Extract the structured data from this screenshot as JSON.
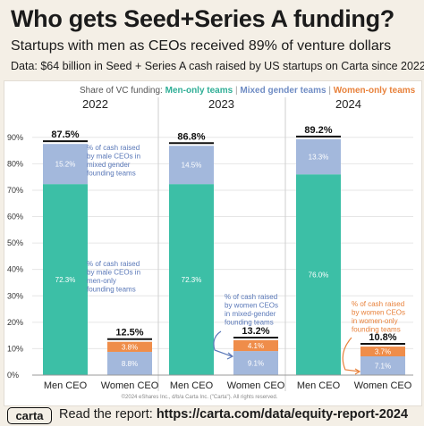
{
  "header": {
    "title": "Who gets Seed+Series A funding?",
    "subtitle": "Startups with men as CEOs received 89% of venture dollars",
    "data_note": "Data: $64 billion in Seed + Series A cash raised by US startups on Carta since 2022"
  },
  "legend": {
    "prefix": "Share of VC funding:",
    "men": "Men-only teams",
    "mixed": "Mixed gender teams",
    "women": "Women-only teams",
    "separator": "|"
  },
  "colors": {
    "men": "#3cbfa6",
    "mixed": "#a3b8dc",
    "women": "#ef8d4a",
    "men_text": "#2fae96",
    "mixed_text": "#6f8cc4",
    "women_text": "#e8823c",
    "annot_blue": "#5a78b8",
    "annot_orange": "#e8823c"
  },
  "chart_data": {
    "type": "bar",
    "stacked": true,
    "ylim": [
      0,
      95
    ],
    "yticks": [
      0,
      10,
      20,
      30,
      40,
      50,
      60,
      70,
      80,
      90
    ],
    "ytick_labels": [
      "0%",
      "10%",
      "20%",
      "30%",
      "40%",
      "50%",
      "60%",
      "70%",
      "80%",
      "90%"
    ],
    "panels": [
      {
        "year": "2022",
        "categories": [
          "Men CEO",
          "Women CEO"
        ],
        "totals": [
          "87.5%",
          "12.5%"
        ],
        "series": [
          {
            "name": "Men-only teams",
            "values": [
              72.3,
              0
            ],
            "labels": [
              "72.3%",
              ""
            ]
          },
          {
            "name": "Mixed gender teams",
            "values": [
              15.2,
              8.8
            ],
            "labels": [
              "15.2%",
              "8.8%"
            ]
          },
          {
            "name": "Women-only teams",
            "values": [
              0,
              3.8
            ],
            "labels": [
              "",
              "3.8%"
            ]
          }
        ]
      },
      {
        "year": "2023",
        "categories": [
          "Men CEO",
          "Women CEO"
        ],
        "totals": [
          "86.8%",
          "13.2%"
        ],
        "series": [
          {
            "name": "Men-only teams",
            "values": [
              72.3,
              0
            ],
            "labels": [
              "72.3%",
              ""
            ]
          },
          {
            "name": "Mixed gender teams",
            "values": [
              14.5,
              9.1
            ],
            "labels": [
              "14.5%",
              "9.1%"
            ]
          },
          {
            "name": "Women-only teams",
            "values": [
              0,
              4.1
            ],
            "labels": [
              "",
              "4.1%"
            ]
          }
        ]
      },
      {
        "year": "2024",
        "categories": [
          "Men CEO",
          "Women CEO"
        ],
        "totals": [
          "89.2%",
          "10.8%"
        ],
        "series": [
          {
            "name": "Men-only teams",
            "values": [
              76.0,
              0
            ],
            "labels": [
              "76.0%",
              ""
            ]
          },
          {
            "name": "Mixed gender teams",
            "values": [
              13.3,
              7.1
            ],
            "labels": [
              "13.3%",
              "7.1%"
            ]
          },
          {
            "name": "Women-only teams",
            "values": [
              0,
              3.7
            ],
            "labels": [
              "",
              "3.7%"
            ]
          }
        ]
      }
    ],
    "annotations": [
      {
        "panel": 0,
        "lines": [
          "% of cash raised",
          "by male CEOs in",
          "mixed gender",
          "founding teams"
        ],
        "color": "annot_blue"
      },
      {
        "panel": 0,
        "lines": [
          "% of cash raised",
          "by male CEOs in",
          "men-only",
          "founding teams"
        ],
        "color": "annot_blue"
      },
      {
        "panel": 1,
        "lines": [
          "% of cash raised",
          "by women CEOs",
          "in mixed-gender",
          "founding teams"
        ],
        "color": "annot_blue"
      },
      {
        "panel": 2,
        "lines": [
          "% of cash raised",
          "by women CEOs",
          "in women-only",
          "founding teams"
        ],
        "color": "annot_orange"
      }
    ],
    "copyright": "©2024 eShares Inc., d/b/a Carta Inc. (\"Carta\"). All rights reserved."
  },
  "footer": {
    "logo": "carta",
    "read_prefix": "Read the report:",
    "read_url": "https://carta.com/data/equity-report-2024"
  }
}
